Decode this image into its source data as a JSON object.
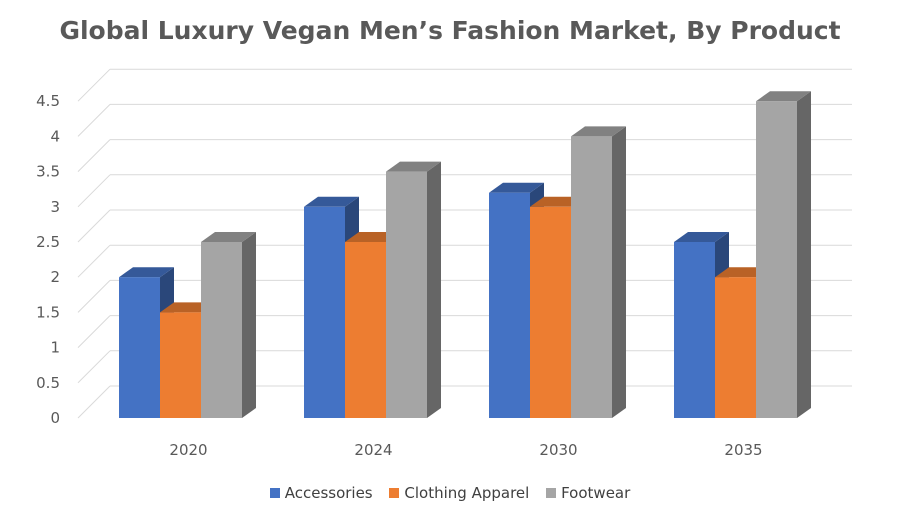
{
  "chart_data": {
    "type": "bar",
    "title": "Global Luxury Vegan Men’s Fashion Market, By Product",
    "xlabel": "",
    "ylabel": "",
    "categories": [
      "2020",
      "2024",
      "2030",
      "2035"
    ],
    "ylim": [
      0,
      4.5
    ],
    "yticks": [
      "0",
      "0.5",
      "1",
      "1.5",
      "2",
      "2.5",
      "3",
      "3.5",
      "4",
      "4.5"
    ],
    "grid": true,
    "legend_position": "bottom",
    "style": "3d-clustered-column",
    "series": [
      {
        "name": "Accessories",
        "color": "#4472C4",
        "values": [
          2.0,
          3.0,
          3.2,
          2.5
        ]
      },
      {
        "name": "Clothing Apparel",
        "color": "#ED7D31",
        "values": [
          1.5,
          2.5,
          3.0,
          2.0
        ]
      },
      {
        "name": "Footwear",
        "color": "#A5A5A5",
        "values": [
          2.5,
          3.5,
          4.0,
          4.5
        ]
      }
    ]
  }
}
